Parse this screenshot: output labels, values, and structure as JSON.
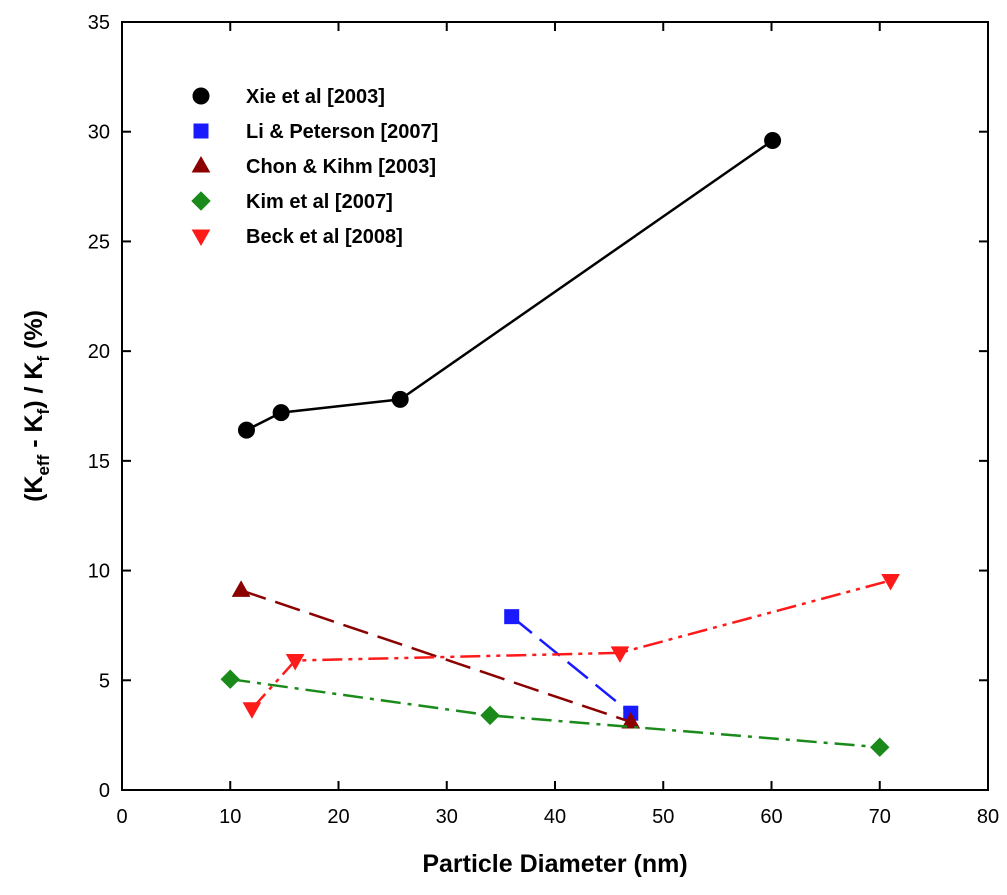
{
  "chart_data": {
    "type": "line",
    "title": "",
    "xlabel": "Particle Diameter (nm)",
    "ylabel_parts": [
      "(K",
      "eff",
      " - K",
      "f",
      ") / K",
      "f",
      " (%)"
    ],
    "xlim": [
      0,
      80
    ],
    "ylim": [
      0,
      35
    ],
    "xticks": [
      0,
      10,
      20,
      30,
      40,
      50,
      60,
      70,
      80
    ],
    "yticks": [
      0,
      5,
      10,
      15,
      20,
      25,
      30,
      35
    ],
    "grid": false,
    "legend_position": "top-left",
    "series": [
      {
        "name": "Xie et al [2003]",
        "marker": "circle",
        "color": "#000000",
        "dash": "solid",
        "points": [
          [
            11.5,
            16.4
          ],
          [
            14.7,
            17.2
          ],
          [
            25.7,
            17.8
          ],
          [
            60.1,
            29.6
          ]
        ]
      },
      {
        "name": "Li & Peterson [2007]",
        "marker": "square",
        "color": "#1a1aff",
        "dash": "long-dash",
        "points": [
          [
            36,
            7.9
          ],
          [
            47,
            3.5
          ]
        ]
      },
      {
        "name": "Chon & Kihm [2003]",
        "marker": "triangle-up",
        "color": "#8b0000",
        "dash": "long-dash",
        "points": [
          [
            11,
            9.1
          ],
          [
            47,
            3.1
          ]
        ]
      },
      {
        "name": "Kim et al [2007]",
        "marker": "diamond",
        "color": "#1a8a1a",
        "dash": "dash-dot",
        "points": [
          [
            10,
            5.05
          ],
          [
            34,
            3.4
          ],
          [
            70,
            1.95
          ]
        ]
      },
      {
        "name": "Beck et al [2008]",
        "marker": "triangle-down",
        "color": "#ff1a1a",
        "dash": "dash-dot-dot",
        "points": [
          [
            12,
            3.7
          ],
          [
            16,
            5.9
          ],
          [
            46,
            6.25
          ],
          [
            71,
            9.55
          ]
        ]
      }
    ]
  }
}
